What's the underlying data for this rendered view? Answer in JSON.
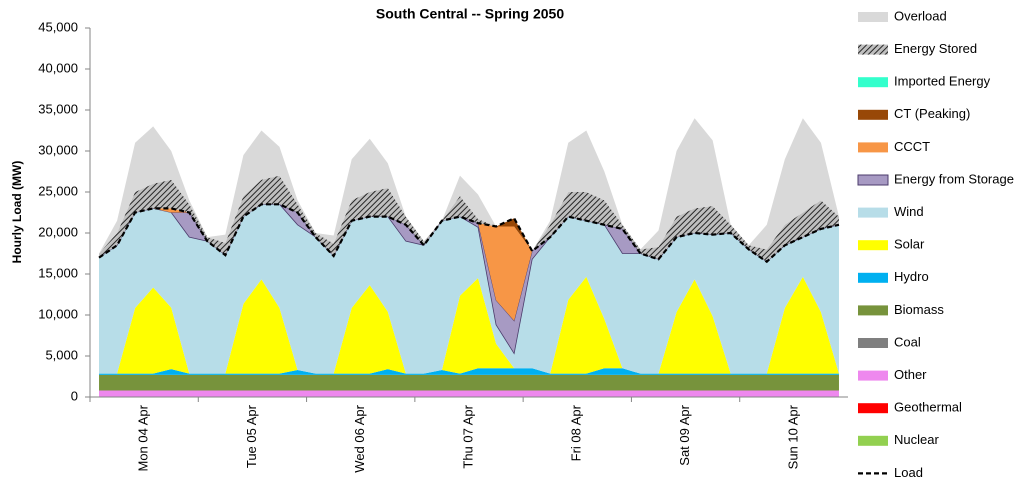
{
  "chart_data": {
    "type": "stacked_area",
    "title": "South Central -- Spring 2050",
    "y_label": "Hourly Load (MW)",
    "categories": [
      null,
      null,
      null,
      "Mon 04 Apr",
      null,
      null,
      null,
      null,
      null,
      "Tue 05 Apr",
      null,
      null,
      null,
      null,
      null,
      "Wed 06 Apr",
      null,
      null,
      null,
      null,
      null,
      "Thu 07 Apr",
      null,
      null,
      null,
      null,
      null,
      "Fri 08 Apr",
      null,
      null,
      null,
      null,
      null,
      "Sat 09 Apr",
      null,
      null,
      null,
      null,
      null,
      "Sun 10 Apr",
      null,
      null
    ],
    "ylim": [
      0,
      45000
    ],
    "yticks": [
      0,
      {
        "value": 5000,
        "label": "5,000"
      },
      {
        "value": 10000,
        "label": "10,000"
      },
      {
        "value": 15000,
        "label": "15,000"
      },
      {
        "value": 20000,
        "label": "20,000"
      },
      {
        "value": 25000,
        "label": "25,000"
      },
      {
        "value": 30000,
        "label": "30,000"
      },
      {
        "value": 35000,
        "label": "35,000"
      },
      {
        "value": 40000,
        "label": "40,000"
      },
      {
        "value": 45000,
        "label": "45,000"
      }
    ],
    "legend": "right",
    "series": [
      {
        "name": "Nuclear",
        "color": "#92d050",
        "values": [
          0,
          0,
          0,
          0,
          0,
          0,
          0,
          0,
          0,
          0,
          0,
          0,
          0,
          0,
          0,
          0,
          0,
          0,
          0,
          0,
          0,
          0,
          0,
          0,
          0,
          0,
          0,
          0,
          0,
          0,
          0,
          0,
          0,
          0,
          0,
          0,
          0,
          0,
          0,
          0,
          0,
          0
        ]
      },
      {
        "name": "Geothermal",
        "color": "#ff0000",
        "values": [
          0,
          0,
          0,
          0,
          0,
          0,
          0,
          0,
          0,
          0,
          0,
          0,
          0,
          0,
          0,
          0,
          0,
          0,
          0,
          0,
          0,
          0,
          0,
          0,
          0,
          0,
          0,
          0,
          0,
          0,
          0,
          0,
          0,
          0,
          0,
          0,
          0,
          0,
          0,
          0,
          0,
          0
        ]
      },
      {
        "name": "Other",
        "color": "#ee88ee",
        "values": [
          800,
          800,
          800,
          800,
          800,
          800,
          800,
          800,
          800,
          800,
          800,
          800,
          800,
          800,
          800,
          800,
          800,
          800,
          800,
          800,
          800,
          800,
          800,
          800,
          800,
          800,
          800,
          800,
          800,
          800,
          800,
          800,
          800,
          800,
          800,
          800,
          800,
          800,
          800,
          800,
          800,
          800
        ]
      },
      {
        "name": "Coal",
        "color": "#7f7f7f",
        "values": [
          0,
          0,
          0,
          0,
          0,
          0,
          0,
          0,
          0,
          0,
          0,
          0,
          0,
          0,
          0,
          0,
          0,
          0,
          0,
          0,
          0,
          0,
          0,
          0,
          0,
          0,
          0,
          0,
          0,
          0,
          0,
          0,
          0,
          0,
          0,
          0,
          0,
          0,
          0,
          0,
          0,
          0
        ]
      },
      {
        "name": "Biomass",
        "color": "#77933c",
        "values": [
          1900,
          1900,
          1900,
          1900,
          1900,
          1900,
          1900,
          1900,
          1900,
          1900,
          1900,
          1900,
          1900,
          1900,
          1900,
          1900,
          1900,
          1900,
          1900,
          1900,
          1900,
          1900,
          1900,
          1900,
          1900,
          1900,
          1900,
          1900,
          1900,
          1900,
          1900,
          1900,
          1900,
          1900,
          1900,
          1900,
          1900,
          1900,
          1900,
          1900,
          1900,
          1900
        ]
      },
      {
        "name": "Hydro",
        "color": "#00b0f0",
        "values": [
          150,
          150,
          150,
          150,
          700,
          150,
          150,
          150,
          150,
          150,
          150,
          600,
          150,
          150,
          150,
          150,
          700,
          150,
          150,
          600,
          150,
          800,
          800,
          800,
          800,
          150,
          150,
          150,
          800,
          800,
          150,
          150,
          150,
          150,
          150,
          150,
          150,
          150,
          150,
          150,
          150,
          150
        ]
      },
      {
        "name": "Solar",
        "color": "#ffff00",
        "values": [
          0,
          0,
          8000,
          10500,
          7500,
          0,
          0,
          0,
          8500,
          11500,
          8000,
          0,
          0,
          0,
          8000,
          10800,
          7000,
          0,
          0,
          0,
          9500,
          11000,
          3000,
          0,
          0,
          0,
          9000,
          11800,
          6000,
          0,
          0,
          0,
          7500,
          11500,
          7000,
          0,
          0,
          0,
          8000,
          11800,
          7500,
          0
        ]
      },
      {
        "name": "Wind",
        "color": "#b7dde8",
        "values": [
          14150,
          15650,
          11650,
          9650,
          11600,
          16650,
          16150,
          14450,
          10650,
          9150,
          12650,
          17700,
          16650,
          14350,
          10650,
          8350,
          11600,
          16150,
          15650,
          18200,
          9650,
          6200,
          2300,
          1800,
          13300,
          16650,
          10150,
          6850,
          11500,
          14000,
          14650,
          13950,
          9150,
          5650,
          9950,
          17150,
          15150,
          13650,
          7650,
          4850,
          10150,
          18150
        ]
      },
      {
        "name": "Energy from Storage",
        "color": "#a79ac3",
        "values": [
          0,
          0,
          0,
          0,
          0,
          3000,
          0,
          0,
          0,
          0,
          0,
          1500,
          0,
          0,
          0,
          0,
          0,
          2000,
          0,
          0,
          0,
          500,
          3000,
          4000,
          1000,
          0,
          0,
          0,
          0,
          3000,
          0,
          0,
          0,
          0,
          0,
          0,
          0,
          0,
          0,
          0,
          0,
          0
        ]
      },
      {
        "name": "CCCT",
        "color": "#f79646",
        "values": [
          0,
          0,
          0,
          0,
          500,
          0,
          0,
          0,
          0,
          0,
          0,
          0,
          0,
          0,
          0,
          0,
          0,
          0,
          0,
          0,
          0,
          0,
          9000,
          11500,
          0,
          0,
          0,
          0,
          0,
          0,
          0,
          0,
          0,
          0,
          0,
          0,
          0,
          0,
          0,
          0,
          0,
          0
        ]
      },
      {
        "name": "CT (Peaking)",
        "color": "#984807",
        "values": [
          0,
          0,
          0,
          0,
          0,
          0,
          0,
          0,
          0,
          0,
          0,
          0,
          0,
          0,
          0,
          0,
          0,
          0,
          0,
          0,
          0,
          0,
          0,
          1000,
          0,
          0,
          0,
          0,
          0,
          0,
          0,
          0,
          0,
          0,
          0,
          0,
          0,
          0,
          0,
          0,
          0,
          0
        ]
      },
      {
        "name": "Imported Energy",
        "color": "#33ffcc",
        "values": [
          0,
          0,
          0,
          0,
          0,
          0,
          0,
          0,
          0,
          0,
          0,
          0,
          0,
          0,
          0,
          0,
          0,
          0,
          0,
          0,
          0,
          0,
          0,
          0,
          0,
          0,
          0,
          0,
          0,
          0,
          0,
          0,
          0,
          0,
          0,
          0,
          0,
          0,
          0,
          0,
          0,
          0
        ]
      },
      {
        "name": "Energy Stored",
        "color": "#404040",
        "hatch": true,
        "values": [
          500,
          1500,
          2500,
          3000,
          3500,
          1000,
          500,
          1500,
          2500,
          3000,
          3500,
          1000,
          500,
          1500,
          2500,
          3000,
          3500,
          1000,
          500,
          0,
          2500,
          500,
          0,
          0,
          0,
          1500,
          3000,
          3500,
          3000,
          500,
          500,
          1500,
          2500,
          3000,
          3500,
          1000,
          500,
          1500,
          2500,
          3000,
          3500,
          1000
        ]
      },
      {
        "name": "Overload",
        "color": "#d9d9d9",
        "values": [
          0,
          1500,
          6000,
          7000,
          3500,
          500,
          0,
          1000,
          5000,
          6000,
          3500,
          500,
          0,
          1000,
          5000,
          6500,
          3000,
          0,
          0,
          0,
          2500,
          3000,
          0,
          0,
          0,
          500,
          6000,
          7500,
          3500,
          0,
          0,
          2000,
          8000,
          11000,
          8000,
          0,
          0,
          3000,
          8000,
          11500,
          7000,
          0
        ]
      }
    ],
    "line_series": {
      "name": "Load",
      "color": "#000000",
      "values": [
        17000,
        18500,
        22500,
        23000,
        23000,
        22500,
        19000,
        17300,
        22000,
        23500,
        23500,
        22500,
        19500,
        17200,
        21500,
        22000,
        22000,
        21000,
        18500,
        21500,
        22000,
        21200,
        20800,
        21800,
        17800,
        19500,
        22000,
        21500,
        21000,
        20500,
        17500,
        16800,
        19500,
        20000,
        19800,
        20000,
        18000,
        16500,
        18500,
        19500,
        20500,
        21000
      ]
    }
  }
}
